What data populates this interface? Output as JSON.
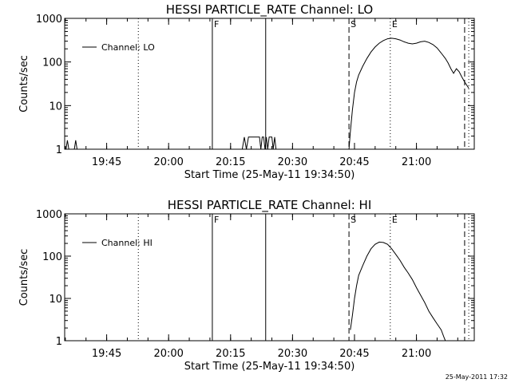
{
  "footer_stamp": "25-May-2011 17:32",
  "chart_data": [
    {
      "type": "line",
      "title": "HESSI PARTICLE_RATE Channel: LO",
      "xlabel": "Start Time (25-May-11 19:34:50)",
      "ylabel": "Counts/sec",
      "yscale": "log",
      "ylim": [
        1,
        1000
      ],
      "xlim": [
        "19:34:50",
        "21:14:00"
      ],
      "x_ticks": [
        "19:45",
        "20:00",
        "20:15",
        "20:30",
        "20:45",
        "21:00"
      ],
      "y_ticks": [
        "1",
        "10",
        "100",
        "1000"
      ],
      "legend": {
        "entries": [
          "Channel: LO"
        ],
        "placement": "top-left"
      },
      "markers": [
        {
          "label": "F",
          "time": "20:10:35",
          "style": "solid"
        },
        {
          "label": "",
          "time": "20:23:30",
          "style": "solid"
        },
        {
          "label": "S",
          "time": "20:43:40",
          "style": "dashed"
        },
        {
          "label": "E",
          "time": "20:53:40",
          "style": "dotted"
        },
        {
          "label": "",
          "time": "19:52:40",
          "style": "dotted"
        },
        {
          "label": "",
          "time": "21:11:40",
          "style": "dashed"
        },
        {
          "label": "",
          "time": "21:12:40",
          "style": "dotted"
        }
      ],
      "series": [
        {
          "name": "Channel: LO",
          "segments": [
            {
              "x": [
                "19:34:50",
                "19:35:10",
                "19:35:30",
                "19:35:50",
                "19:36:10"
              ],
              "y": [
                1,
                1,
                1.6,
                1,
                1
              ]
            },
            {
              "x": [
                "19:37:10",
                "19:37:30",
                "19:37:50"
              ],
              "y": [
                1,
                1.6,
                1
              ]
            },
            {
              "x": [
                "20:17:50",
                "20:18:20",
                "20:18:50",
                "20:19:20",
                "20:22:00",
                "20:22:20",
                "20:22:40",
                "20:23:00",
                "20:23:20",
                "20:23:40",
                "20:24:00",
                "20:24:20",
                "20:25:00",
                "20:25:20",
                "20:25:40",
                "20:26:00",
                "20:26:20"
              ],
              "y": [
                1,
                1.9,
                1,
                1.9,
                1.9,
                1,
                1.9,
                1.9,
                1,
                1.9,
                1,
                1.9,
                1.9,
                1,
                1.9,
                1,
                1
              ]
            },
            {
              "x": [
                "20:43:40",
                "20:44:00",
                "20:44:30",
                "20:45:00",
                "20:45:30",
                "20:46:00",
                "20:47:00",
                "20:48:00",
                "20:49:00",
                "20:50:00",
                "20:51:00",
                "20:52:00",
                "20:53:00",
                "20:54:00",
                "20:55:00",
                "20:56:00",
                "20:57:00",
                "20:58:00",
                "20:59:00",
                "21:00:00",
                "21:01:00",
                "21:02:00",
                "21:03:00",
                "21:04:00",
                "21:05:00",
                "21:06:00",
                "21:07:00",
                "21:07:40",
                "21:08:20",
                "21:09:00",
                "21:09:40",
                "21:10:20",
                "21:11:00",
                "21:11:40",
                "21:12:40"
              ],
              "y": [
                1,
                2.5,
                8,
                20,
                35,
                50,
                80,
                120,
                170,
                220,
                270,
                310,
                340,
                350,
                340,
                320,
                290,
                270,
                260,
                270,
                290,
                300,
                280,
                250,
                210,
                160,
                120,
                95,
                70,
                55,
                70,
                60,
                45,
                35,
                25
              ]
            }
          ]
        }
      ]
    },
    {
      "type": "line",
      "title": "HESSI PARTICLE_RATE Channel: HI",
      "xlabel": "Start Time (25-May-11 19:34:50)",
      "ylabel": "Counts/sec",
      "yscale": "log",
      "ylim": [
        1,
        1000
      ],
      "xlim": [
        "19:34:50",
        "21:14:00"
      ],
      "x_ticks": [
        "19:45",
        "20:00",
        "20:15",
        "20:30",
        "20:45",
        "21:00"
      ],
      "y_ticks": [
        "1",
        "10",
        "100",
        "1000"
      ],
      "legend": {
        "entries": [
          "Channel: HI"
        ],
        "placement": "top-left"
      },
      "markers": [
        {
          "label": "F",
          "time": "20:10:35",
          "style": "solid"
        },
        {
          "label": "",
          "time": "20:23:30",
          "style": "solid"
        },
        {
          "label": "S",
          "time": "20:43:40",
          "style": "dashed"
        },
        {
          "label": "E",
          "time": "20:53:40",
          "style": "dotted"
        },
        {
          "label": "",
          "time": "19:52:40",
          "style": "dotted"
        },
        {
          "label": "",
          "time": "21:11:40",
          "style": "dashed"
        },
        {
          "label": "",
          "time": "21:12:40",
          "style": "dotted"
        }
      ],
      "series": [
        {
          "name": "Channel: HI",
          "segments": [
            {
              "x": [
                "20:44:00",
                "20:44:30",
                "20:45:00",
                "20:45:30",
                "20:46:00",
                "20:47:00",
                "20:48:00",
                "20:49:00",
                "20:50:00",
                "20:51:00",
                "20:52:00",
                "20:53:00",
                "20:54:00",
                "20:55:00",
                "20:56:00",
                "20:57:00",
                "20:58:00",
                "20:59:00",
                "21:00:00",
                "21:01:00",
                "21:02:00",
                "21:03:00",
                "21:04:00",
                "21:05:00",
                "21:06:00",
                "21:06:40",
                "21:07:00"
              ],
              "y": [
                1.8,
                4,
                10,
                20,
                35,
                60,
                100,
                150,
                190,
                215,
                210,
                190,
                150,
                110,
                80,
                55,
                40,
                28,
                18,
                12,
                8,
                5,
                3.5,
                2.5,
                1.8,
                1.2,
                1
              ]
            }
          ]
        }
      ]
    }
  ]
}
